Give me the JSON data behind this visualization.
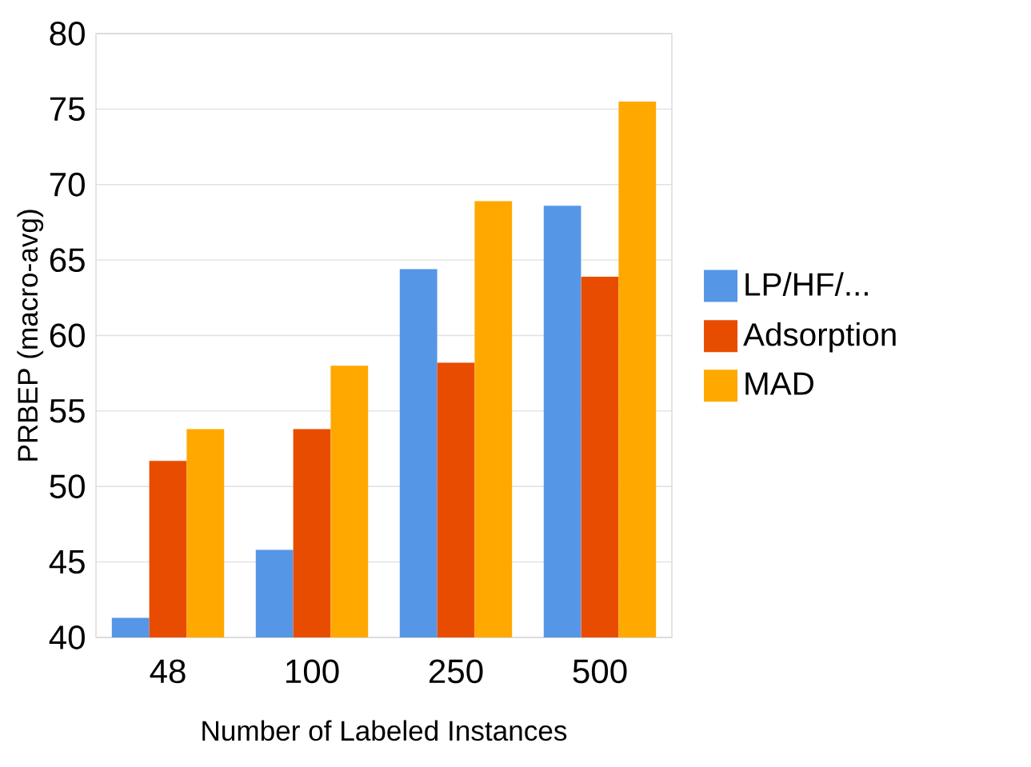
{
  "chart_data": {
    "type": "bar",
    "xlabel": "Number of Labeled Instances",
    "ylabel": "PRBEP (macro-avg)",
    "categories": [
      "48",
      "100",
      "250",
      "500"
    ],
    "series": [
      {
        "name": "LP/HF/...",
        "color": "#5596e6",
        "values": [
          41.3,
          45.8,
          64.4,
          68.6
        ]
      },
      {
        "name": "Adsorption",
        "color": "#e84c00",
        "values": [
          51.7,
          53.8,
          58.2,
          63.9
        ]
      },
      {
        "name": "MAD",
        "color": "#ffa800",
        "values": [
          53.8,
          58.0,
          68.9,
          75.5
        ]
      }
    ],
    "ylim": [
      40,
      80
    ],
    "yticks": [
      40,
      45,
      50,
      55,
      60,
      65,
      70,
      75,
      80
    ],
    "grid": "y",
    "legend": "right"
  }
}
